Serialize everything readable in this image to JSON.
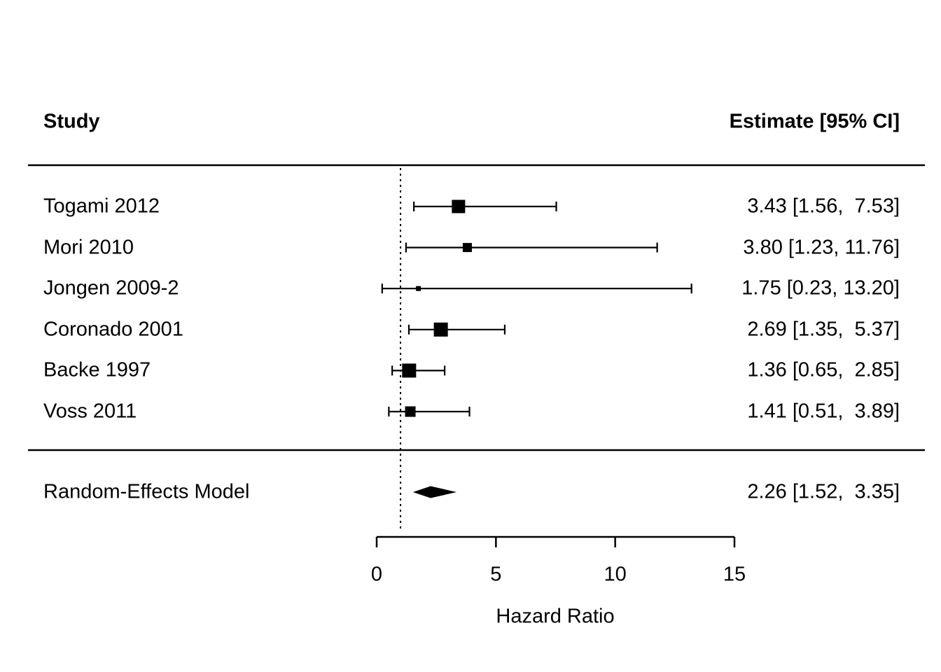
{
  "header": {
    "study": "Study",
    "estimate": "Estimate [95% CI]"
  },
  "axis": {
    "label": "Hazard Ratio",
    "min": 0,
    "max": 15,
    "ticks": [
      "0",
      "5",
      "10",
      "15"
    ],
    "tick_values": [
      0,
      5,
      10,
      15
    ],
    "reference_line": 1
  },
  "colors": {
    "foreground": "#000000",
    "background": "#ffffff"
  },
  "chart_data": {
    "type": "forest",
    "xlabel": "Hazard Ratio",
    "xlim": [
      0,
      15
    ],
    "xticks": [
      0,
      5,
      10,
      15
    ],
    "reference_line_x": 1,
    "studies": [
      {
        "label": "Togami 2012",
        "estimate": 3.43,
        "ci_low": 1.56,
        "ci_high": 7.53,
        "estimate_text": "3.43 [1.56,  7.53]",
        "marker_size": 19
      },
      {
        "label": "Mori 2010",
        "estimate": 3.8,
        "ci_low": 1.23,
        "ci_high": 11.76,
        "estimate_text": "3.80 [1.23, 11.76]",
        "marker_size": 13
      },
      {
        "label": "Jongen 2009-2",
        "estimate": 1.75,
        "ci_low": 0.23,
        "ci_high": 13.2,
        "estimate_text": "1.75 [0.23, 13.20]",
        "marker_size": 7
      },
      {
        "label": "Coronado 2001",
        "estimate": 2.69,
        "ci_low": 1.35,
        "ci_high": 5.37,
        "estimate_text": "2.69 [1.35,  5.37]",
        "marker_size": 20
      },
      {
        "label": "Backe 1997",
        "estimate": 1.36,
        "ci_low": 0.65,
        "ci_high": 2.85,
        "estimate_text": "1.36 [0.65,  2.85]",
        "marker_size": 20
      },
      {
        "label": "Voss 2011",
        "estimate": 1.41,
        "ci_low": 0.51,
        "ci_high": 3.89,
        "estimate_text": "1.41 [0.51,  3.89]",
        "marker_size": 15
      }
    ],
    "summary": {
      "label": "Random-Effects Model",
      "estimate": 2.26,
      "ci_low": 1.52,
      "ci_high": 3.35,
      "estimate_text": "2.26 [1.52,  3.35]"
    }
  }
}
